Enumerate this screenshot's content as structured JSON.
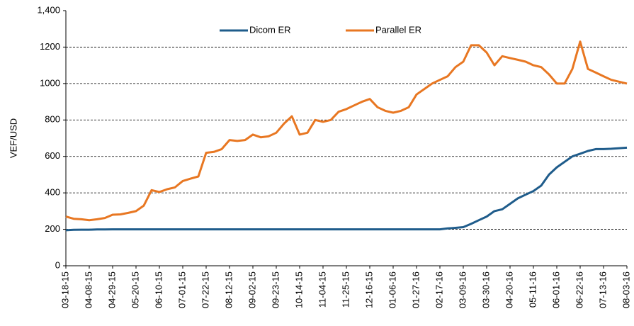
{
  "chart_data": {
    "type": "line",
    "y_label": "VEF/USD",
    "categories": [
      "03-18-15",
      null,
      null,
      "04-08-15",
      null,
      null,
      "04-29-15",
      null,
      null,
      "05-20-15",
      null,
      null,
      "06-10-15",
      null,
      null,
      "07-01-15",
      null,
      null,
      "07-22-15",
      null,
      null,
      "08-12-15",
      null,
      null,
      "09-02-15",
      null,
      null,
      "09-23-15",
      null,
      null,
      "10-14-15",
      null,
      null,
      "11-04-15",
      null,
      null,
      "11-25-15",
      null,
      null,
      "12-16-15",
      null,
      null,
      "01-06-16",
      null,
      null,
      "01-27-16",
      null,
      null,
      "02-17-16",
      null,
      null,
      "03-09-16",
      null,
      null,
      "03-30-16",
      null,
      null,
      "04-20-16",
      null,
      null,
      "05-11-16",
      null,
      null,
      "06-01-16",
      null,
      null,
      "06-22-16",
      null,
      null,
      "07-13-16",
      null,
      null,
      "08-03-16"
    ],
    "series": [
      {
        "name": "Dicom ER",
        "color": "#1f5c8b",
        "values": [
          195,
          197,
          198,
          198,
          199,
          199,
          200,
          200,
          200,
          200,
          200,
          200,
          200,
          200,
          200,
          200,
          200,
          200,
          200,
          200,
          200,
          200,
          200,
          200,
          200,
          200,
          200,
          200,
          200,
          200,
          200,
          200,
          200,
          200,
          200,
          200,
          200,
          200,
          200,
          200,
          200,
          200,
          200,
          200,
          200,
          200,
          200,
          200,
          200,
          205,
          208,
          212,
          230,
          250,
          270,
          300,
          310,
          340,
          370,
          390,
          410,
          440,
          500,
          540,
          570,
          600,
          615,
          630,
          640,
          640,
          642,
          645,
          648
        ]
      },
      {
        "name": "Parallel ER",
        "color": "#e87722",
        "values": [
          270,
          258,
          255,
          250,
          255,
          262,
          280,
          282,
          290,
          300,
          330,
          415,
          405,
          420,
          430,
          465,
          478,
          490,
          620,
          625,
          640,
          690,
          685,
          690,
          720,
          705,
          710,
          730,
          780,
          820,
          720,
          730,
          800,
          790,
          800,
          845,
          860,
          880,
          900,
          915,
          870,
          850,
          840,
          850,
          870,
          940,
          970,
          1000,
          1020,
          1040,
          1090,
          1120,
          1210,
          1210,
          1170,
          1100,
          1150,
          1140,
          1130,
          1120,
          1100,
          1090,
          1050,
          1000,
          1000,
          1080,
          1230,
          1080,
          1060,
          1040,
          1020,
          1010,
          1000
        ]
      }
    ],
    "ylim": [
      0,
      1400
    ],
    "yticks": [
      0,
      200,
      400,
      600,
      800,
      1000,
      1200,
      {
        "value": 1400,
        "label": "1,400"
      }
    ],
    "grid": true,
    "legend": "top"
  }
}
